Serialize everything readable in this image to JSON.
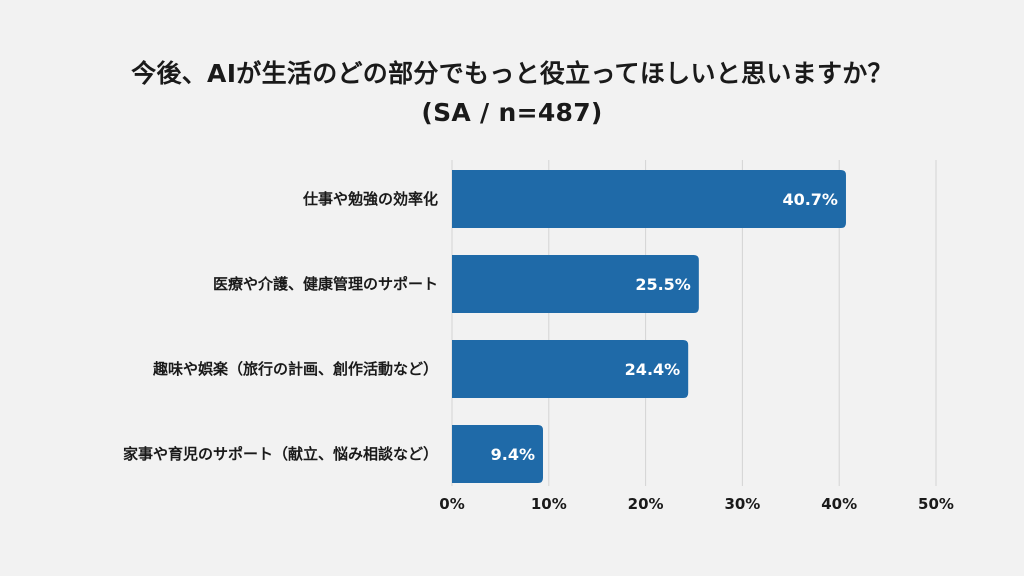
{
  "chart_data": {
    "type": "bar",
    "orientation": "horizontal",
    "title": "今後、AIが生活のどの部分でもっと役立ってほしいと思いますか？",
    "subtitle": "(SA / n=487)",
    "categories": [
      "仕事や勉強の効率化",
      "医療や介護、健康管理のサポート",
      "趣味や娯楽（旅行の計画、創作活動など）",
      "家事や育児のサポート（献立、悩み相談など）"
    ],
    "values": [
      40.7,
      25.5,
      24.4,
      9.4
    ],
    "value_labels": [
      "40.7%",
      "25.5%",
      "24.4%",
      "9.4%"
    ],
    "xlim": [
      0,
      50
    ],
    "x_ticks": [
      0,
      10,
      20,
      30,
      40,
      50
    ],
    "x_tick_labels": [
      "0%",
      "10%",
      "20%",
      "30%",
      "40%",
      "50%"
    ],
    "xlabel": "",
    "ylabel": "",
    "grid": true,
    "bar_color": "#1f6aa8",
    "background_color": "#f2f2f2",
    "grid_color": "#d4d4d4"
  }
}
